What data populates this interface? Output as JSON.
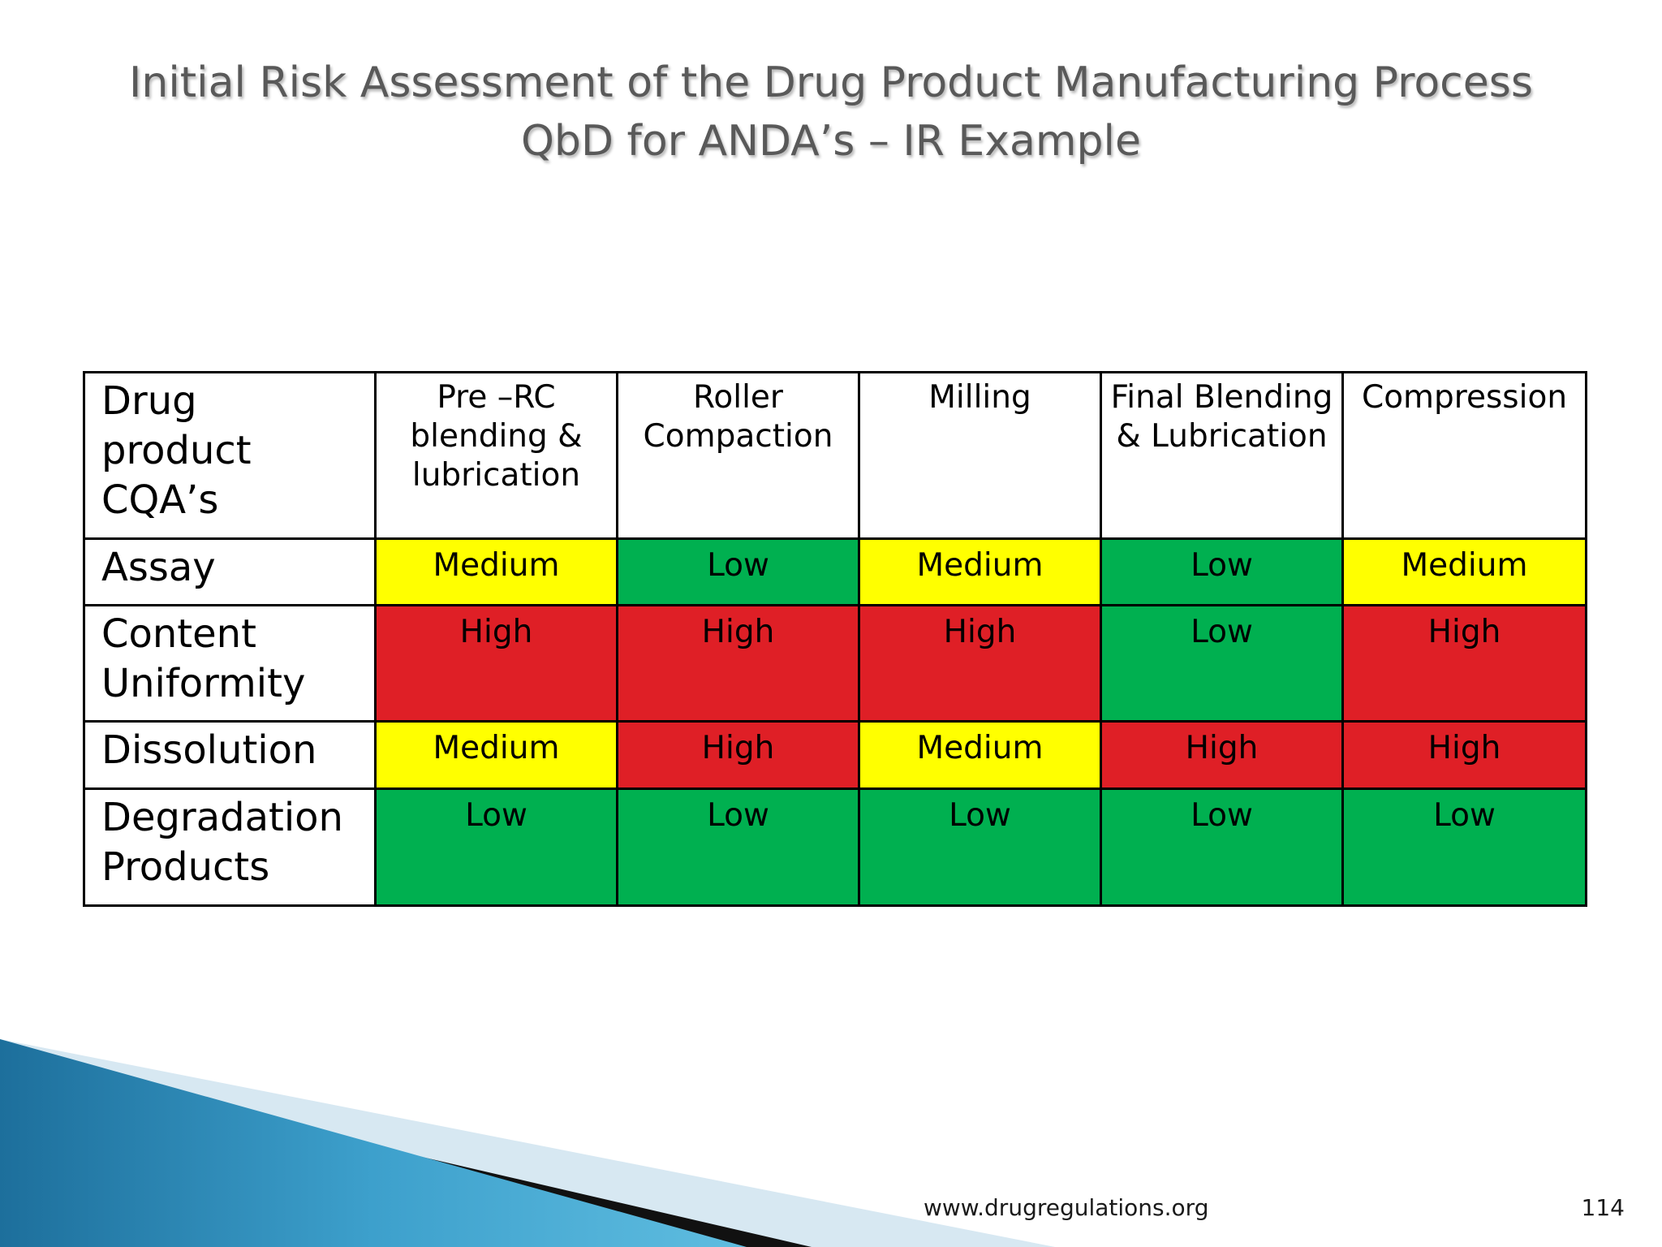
{
  "title": {
    "line1": "Initial Risk Assessment of the Drug Product Manufacturing Process",
    "line2": "QbD for ANDA’s – IR Example"
  },
  "table": {
    "corner": "Drug product CQA’s",
    "columns": [
      "Pre –RC blending & lubrication",
      "Roller Compaction",
      "Milling",
      "Final Blending & Lubrication",
      "Compression"
    ],
    "rows": [
      {
        "label": "Assay",
        "values": [
          "Medium",
          "Low",
          "Medium",
          "Low",
          "Medium"
        ]
      },
      {
        "label": "Content Uniformity",
        "values": [
          "High",
          "High",
          "High",
          "Low",
          "High"
        ]
      },
      {
        "label": "Dissolution",
        "values": [
          "Medium",
          "High",
          "Medium",
          "High",
          "High"
        ]
      },
      {
        "label": "Degradation Products",
        "values": [
          "Low",
          "Low",
          "Low",
          "Low",
          "Low"
        ]
      }
    ],
    "level_colors": {
      "High": "#df1f26",
      "Medium": "#ffff00",
      "Low": "#00b050"
    }
  },
  "footer": {
    "url": "www.drugregulations.org",
    "page": "114"
  }
}
